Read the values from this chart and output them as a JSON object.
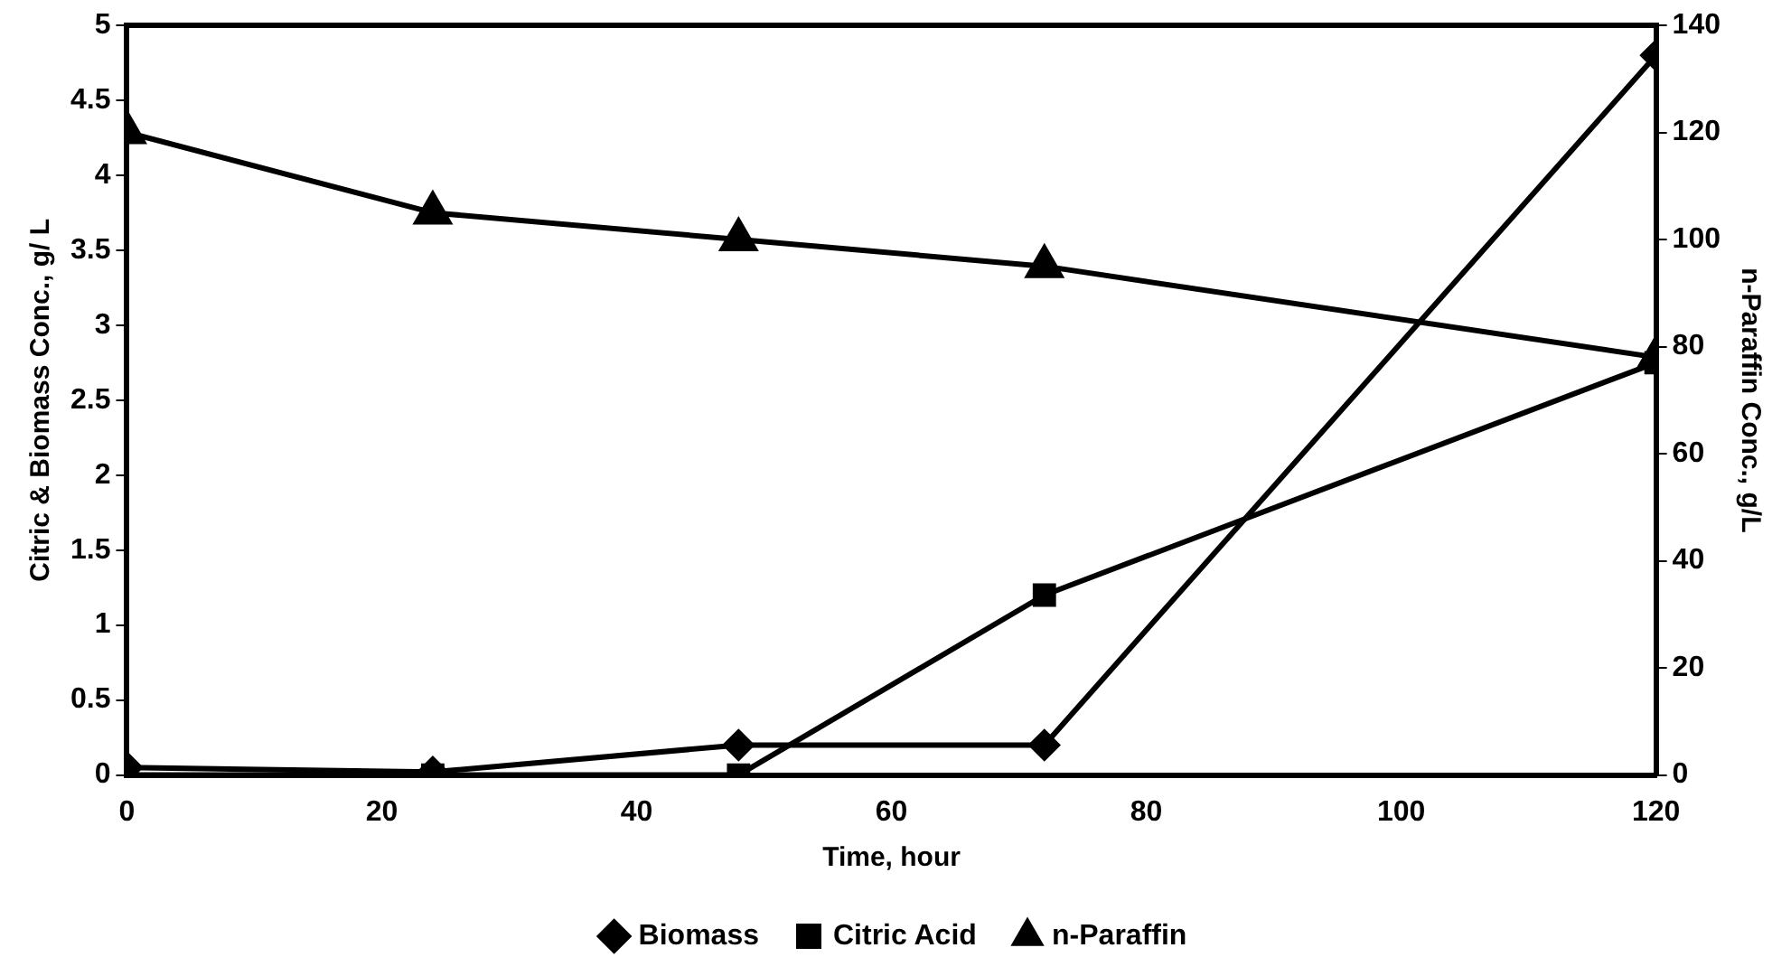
{
  "chart_data": {
    "type": "line",
    "xlabel": "Time, hour",
    "ylabel": "Citric & Biomass Conc., g/ L",
    "y2label": "n-Paraffin Conc., g/L",
    "x": [
      0,
      24,
      48,
      72,
      120
    ],
    "series": [
      {
        "name": "Biomass",
        "color": "#000000",
        "marker": "diamond",
        "values": [
          0.05,
          0.02,
          0.2,
          0.2,
          4.8
        ]
      },
      {
        "name": "Citric Acid",
        "color": "#000000",
        "marker": "square",
        "values": [
          0,
          0,
          0,
          1.2,
          2.75
        ]
      },
      {
        "name": "n-Paraffin",
        "color": "#000000",
        "marker": "triangle",
        "axis": "y2",
        "values": [
          120,
          105,
          100,
          95,
          78
        ]
      }
    ],
    "xlim": [
      0,
      120
    ],
    "xticks": [
      0,
      20,
      40,
      60,
      80,
      100,
      120
    ],
    "ylim": [
      0,
      5
    ],
    "yticks": [
      0,
      0.5,
      1,
      1.5,
      2,
      2.5,
      3,
      3.5,
      4,
      4.5,
      5
    ],
    "y2lim": [
      0,
      140
    ],
    "y2ticks": [
      0,
      20,
      40,
      60,
      80,
      100,
      120,
      140
    ],
    "grid": false,
    "legend": "bottom",
    "line_style": "solid"
  }
}
